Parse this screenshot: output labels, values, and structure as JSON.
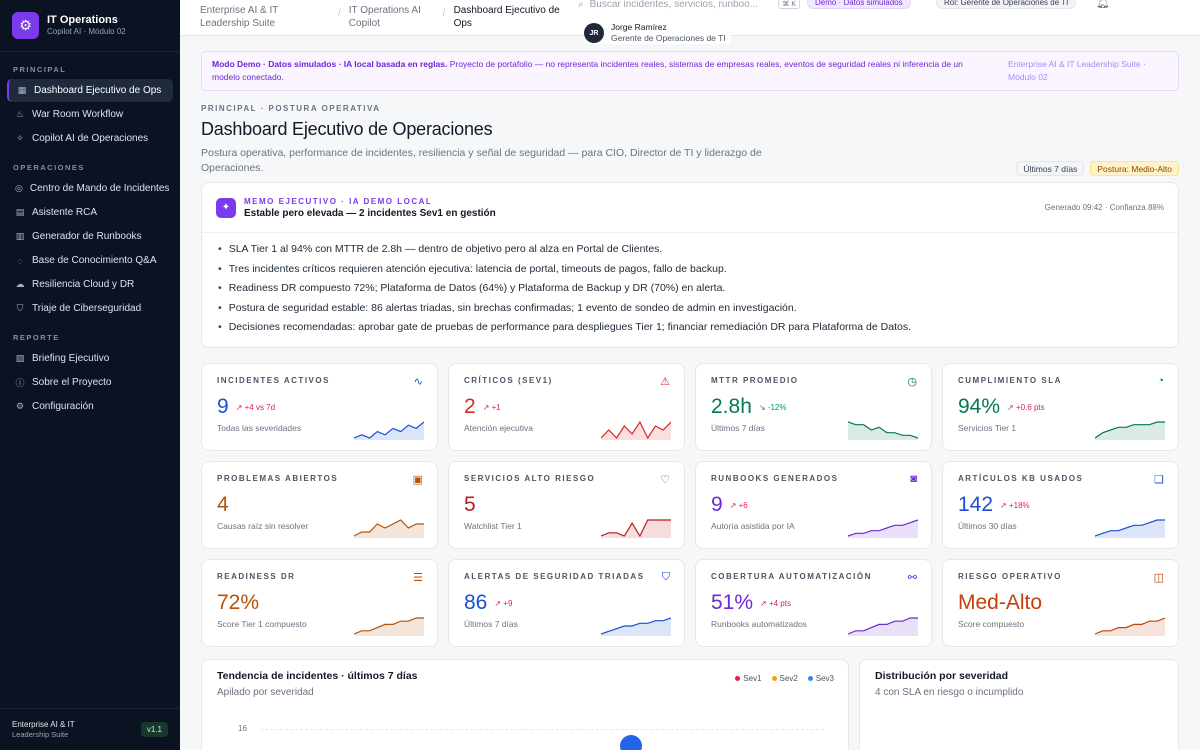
{
  "app": {
    "title": "IT Operations",
    "subtitle": "Copilot AI · Módulo 02",
    "footer_title": "Enterprise AI & IT",
    "footer_sub": "Leadership Suite",
    "version": "v1.1"
  },
  "sidebar": {
    "sections": [
      {
        "label": "PRINCIPAL",
        "items": [
          {
            "label": "Dashboard Ejecutivo de Ops",
            "icon": "grid-icon",
            "active": true
          },
          {
            "label": "War Room Workflow",
            "icon": "flame-icon"
          },
          {
            "label": "Copilot AI de Operaciones",
            "icon": "sparkle-icon"
          }
        ]
      },
      {
        "label": "OPERACIONES",
        "items": [
          {
            "label": "Centro de Mando de Incidentes",
            "icon": "target-icon"
          },
          {
            "label": "Asistente RCA",
            "icon": "document-icon"
          },
          {
            "label": "Generador de Runbooks",
            "icon": "book-icon"
          },
          {
            "label": "Base de Conocimiento Q&A",
            "icon": "chat-icon"
          },
          {
            "label": "Resiliencia Cloud y DR",
            "icon": "cloud-icon"
          },
          {
            "label": "Triaje de Ciberseguridad",
            "icon": "shield-icon"
          }
        ]
      },
      {
        "label": "REPORTE",
        "items": [
          {
            "label": "Briefing Ejecutivo",
            "icon": "file-icon"
          },
          {
            "label": "Sobre el Proyecto",
            "icon": "info-icon"
          },
          {
            "label": "Configuración",
            "icon": "gear-icon"
          }
        ]
      }
    ]
  },
  "topbar": {
    "breadcrumbs": [
      "Enterprise AI & IT Leadership Suite",
      "IT Operations AI Copilot",
      "Dashboard Ejecutivo de Ops"
    ],
    "search_placeholder": "Buscar incidentes, servicios, runboo...",
    "shortcut": "⌘ K",
    "demo_badge": "Demo · Datos simulados",
    "role_badge": "Rol: Gerente de Operaciones de TI",
    "user_initials": "JR",
    "user_name": "Jorge Ramírez",
    "user_role": "Gerente de Operaciones de TI"
  },
  "banner": {
    "strong": "Modo Demo · Datos simulados · IA local basada en reglas.",
    "text": " Proyecto de portafolio — no representa incidentes reales, sistemas de empresas reales, eventos de seguridad reales ni inferencia de un modelo conectado.",
    "right": "Enterprise AI & IT Leadership Suite · Módulo 02"
  },
  "header": {
    "eyebrow": "PRINCIPAL · POSTURA OPERATIVA",
    "title": "Dashboard Ejecutivo de Operaciones",
    "subtitle": "Postura operativa, performance de incidentes, resiliencia y señal de seguridad — para CIO, Director de TI y liderazgo de Operaciones.",
    "chip_period": "Últimos 7 días",
    "chip_posture": "Postura: Medio-Alto"
  },
  "memo": {
    "eyebrow": "MEMO EJECUTIVO · IA DEMO LOCAL",
    "title": "Estable pero elevada — 2 incidentes Sev1 en gestión",
    "meta": "Generado 09:42 · Confianza 88%",
    "bullets": [
      "SLA Tier 1 al 94% con MTTR de 2.8h — dentro de objetivo pero al alza en Portal de Clientes.",
      "Tres incidentes críticos requieren atención ejecutiva: latencia de portal, timeouts de pagos, fallo de backup.",
      "Readiness DR compuesto 72%; Plataforma de Datos (64%) y Plataforma de Backup y DR (70%) en alerta.",
      "Postura de seguridad estable: 86 alertas triadas, sin brechas confirmadas; 1 evento de sondeo de admin en investigación.",
      "Decisiones recomendadas: aprobar gate de pruebas de performance para despliegues Tier 1; financiar remediación DR para Plataforma de Datos."
    ]
  },
  "kpis": [
    {
      "label": "INCIDENTES ACTIVOS",
      "value": "9",
      "delta": "↗ +4 vs 7d",
      "sub": "Todas las severidades",
      "color": "#1d4ed8",
      "delta_color": "#e11d48",
      "icon": "activity-icon",
      "icon_glyph": "∿",
      "trend": [
        3,
        4,
        3,
        5,
        4,
        6,
        5,
        7,
        6,
        8
      ]
    },
    {
      "label": "CRÍTICOS (SEV1)",
      "value": "2",
      "delta": "↗ +1",
      "sub": "Atención ejecutiva",
      "color": "#dc2626",
      "delta_color": "#e11d48",
      "icon": "alert-triangle-icon",
      "icon_glyph": "⚠",
      "trend": [
        1,
        3,
        1,
        4,
        2,
        5,
        1,
        4,
        3,
        5
      ]
    },
    {
      "label": "MTTR PROMEDIO",
      "value": "2.8h",
      "delta": "↘ -12%",
      "sub": "Últimos 7 días",
      "color": "#047857",
      "delta_color": "#059669",
      "icon": "timer-icon",
      "icon_glyph": "◷",
      "trend": [
        8,
        7,
        7,
        5,
        6,
        4,
        4,
        3,
        3,
        2
      ]
    },
    {
      "label": "CUMPLIMIENTO SLA",
      "value": "94%",
      "delta": "↗ +0.6 pts",
      "sub": "Servicios Tier 1",
      "color": "#047857",
      "delta_color": "#e11d48",
      "icon": "gauge-icon",
      "icon_glyph": "◔",
      "trend": [
        2,
        4,
        5,
        6,
        6,
        7,
        7,
        7,
        8,
        8
      ]
    },
    {
      "label": "PROBLEMAS ABIERTOS",
      "value": "4",
      "delta": "",
      "sub": "Causas raíz sin resolver",
      "color": "#b45309",
      "delta_color": "#b45309",
      "icon": "file-search-icon",
      "icon_glyph": "▣",
      "trend": [
        2,
        3,
        3,
        5,
        4,
        5,
        6,
        4,
        5,
        5
      ]
    },
    {
      "label": "SERVICIOS ALTO RIESGO",
      "value": "5",
      "delta": "",
      "sub": "Watchlist Tier 1",
      "color": "#b91c1c",
      "delta_color": "#b91c1c",
      "icon": "heart-pulse-icon",
      "icon_glyph": "♡",
      "trend": [
        1,
        2,
        2,
        1,
        5,
        1,
        6,
        6,
        6,
        6
      ]
    },
    {
      "label": "RUNBOOKS GENERADOS",
      "value": "9",
      "delta": "↗ +6",
      "sub": "Autoría asistida por IA",
      "color": "#6d28d9",
      "delta_color": "#e11d48",
      "icon": "bot-icon",
      "icon_glyph": "◙",
      "trend": [
        1,
        2,
        2,
        3,
        3,
        4,
        5,
        5,
        6,
        7
      ]
    },
    {
      "label": "ARTÍCULOS KB USADOS",
      "value": "142",
      "delta": "↗ +18%",
      "sub": "Últimos 30 días",
      "color": "#1d4ed8",
      "delta_color": "#e11d48",
      "icon": "book-open-icon",
      "icon_glyph": "❏",
      "trend": [
        1,
        2,
        3,
        3,
        4,
        5,
        5,
        6,
        7,
        7
      ]
    },
    {
      "label": "READINESS DR",
      "value": "72%",
      "delta": "",
      "sub": "Score Tier 1 compuesto",
      "color": "#b45309",
      "delta_color": "#b45309",
      "icon": "database-icon",
      "icon_glyph": "☰",
      "trend": [
        1,
        2,
        2,
        3,
        4,
        4,
        5,
        5,
        6,
        6
      ]
    },
    {
      "label": "ALERTAS DE SEGURIDAD TRIADAS",
      "value": "86",
      "delta": "↗ +9",
      "sub": "Últimos 7 días",
      "color": "#1d4ed8",
      "delta_color": "#e11d48",
      "icon": "shield-check-icon",
      "icon_glyph": "⛉",
      "trend": [
        1,
        2,
        3,
        4,
        4,
        5,
        5,
        6,
        6,
        7
      ]
    },
    {
      "label": "COBERTURA AUTOMATIZACIÓN",
      "value": "51%",
      "delta": "↗ +4 pts",
      "sub": "Runbooks automatizados",
      "color": "#6d28d9",
      "delta_color": "#e11d48",
      "icon": "workflow-icon",
      "icon_glyph": "⚯",
      "trend": [
        1,
        2,
        2,
        3,
        4,
        4,
        5,
        5,
        6,
        6
      ]
    },
    {
      "label": "RIESGO OPERATIVO",
      "value": "Med-Alto",
      "delta": "",
      "sub": "Score compuesto",
      "color": "#c2410c",
      "delta_color": "#c2410c",
      "icon": "briefcase-icon",
      "icon_glyph": "◫",
      "trend": [
        1,
        2,
        2,
        3,
        3,
        4,
        4,
        5,
        5,
        6
      ]
    }
  ],
  "trend_panel": {
    "title": "Tendencia de incidentes · últimos 7 días",
    "subtitle": "Apilado por severidad",
    "legend": [
      {
        "label": "Sev1",
        "color": "#e11d48"
      },
      {
        "label": "Sev2",
        "color": "#f59e0b"
      },
      {
        "label": "Sev3",
        "color": "#3b82f6"
      }
    ],
    "y_tick": "16"
  },
  "dist_panel": {
    "title": "Distribución por severidad",
    "subtitle": "4 con SLA en riesgo o incumplido"
  }
}
